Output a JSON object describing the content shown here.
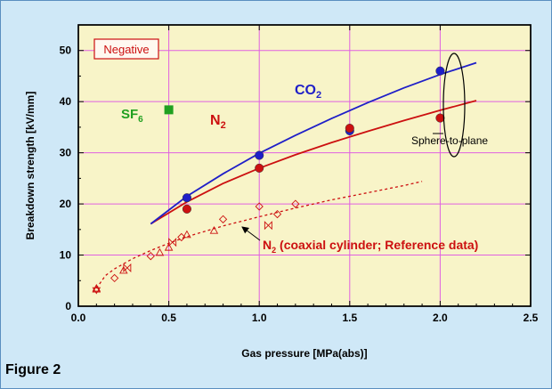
{
  "caption": "Figure 2",
  "chart_data": {
    "type": "scatter",
    "xlabel": "Gas pressure  [MPa(abs)]",
    "ylabel": "Breakdown strength  [kV/mm]",
    "xlim": [
      0,
      2.5
    ],
    "ylim": [
      0,
      55
    ],
    "xticks": [
      "0.0",
      "0.5",
      "1.0",
      "1.5",
      "2.0",
      "2.5"
    ],
    "yticks": [
      "0",
      "10",
      "20",
      "30",
      "40",
      "50"
    ],
    "grid": true,
    "tag": "Negative",
    "annotations": {
      "sphere_to_plane": "Sphere-to-plane"
    },
    "colors": {
      "co2": "#1f1fc8",
      "n2": "#cc1010",
      "sf6": "#20a020",
      "plot_bg": "#f8f4c8",
      "grid": "#e060e0"
    },
    "series": [
      {
        "key": "co2",
        "label_main": "CO",
        "label_sub": "2",
        "color": "#1f1fc8",
        "points": [
          [
            0.6,
            21.2
          ],
          [
            1.0,
            29.5
          ],
          [
            1.5,
            34.3
          ],
          [
            2.0,
            46.0
          ]
        ],
        "fit": [
          [
            0.4,
            16.1
          ],
          [
            0.6,
            21.5
          ],
          [
            0.8,
            25.9
          ],
          [
            1.0,
            29.9
          ],
          [
            1.2,
            33.4
          ],
          [
            1.4,
            36.7
          ],
          [
            1.6,
            39.8
          ],
          [
            1.8,
            42.7
          ],
          [
            2.0,
            45.3
          ],
          [
            2.2,
            47.6
          ]
        ]
      },
      {
        "key": "n2",
        "label_main": "N",
        "label_sub": "2",
        "color": "#cc1010",
        "points": [
          [
            0.6,
            19.0
          ],
          [
            1.0,
            27.0
          ],
          [
            1.5,
            34.8
          ],
          [
            2.0,
            36.8
          ]
        ],
        "fit": [
          [
            0.4,
            16.1
          ],
          [
            0.6,
            20.4
          ],
          [
            0.8,
            24.0
          ],
          [
            1.0,
            27.0
          ],
          [
            1.2,
            29.6
          ],
          [
            1.4,
            32.0
          ],
          [
            1.6,
            34.2
          ],
          [
            1.8,
            36.3
          ],
          [
            2.0,
            38.3
          ],
          [
            2.2,
            40.2
          ]
        ]
      },
      {
        "key": "sf6",
        "label_main": "SF",
        "label_sub": "6",
        "color": "#20a020",
        "points": [
          [
            0.5,
            38.4
          ]
        ]
      },
      {
        "key": "n2_coaxial",
        "label_main": "N",
        "label_sub": "2",
        "label_suffix": " (coaxial cylinder; Reference data)",
        "color": "#cc1010",
        "points": [
          [
            0.1,
            3.2
          ],
          [
            0.1,
            3.5
          ],
          [
            0.2,
            5.5
          ],
          [
            0.25,
            7.0
          ],
          [
            0.27,
            7.5
          ],
          [
            0.4,
            9.8
          ],
          [
            0.45,
            10.5
          ],
          [
            0.5,
            11.5
          ],
          [
            0.52,
            12.5
          ],
          [
            0.57,
            13.5
          ],
          [
            0.6,
            14.0
          ],
          [
            0.75,
            14.8
          ],
          [
            0.8,
            17.0
          ],
          [
            1.0,
            19.5
          ],
          [
            1.05,
            15.8
          ],
          [
            1.1,
            18.0
          ],
          [
            1.2,
            20.0
          ]
        ],
        "fit": [
          [
            0.1,
            3.5
          ],
          [
            0.15,
            6.0
          ],
          [
            0.2,
            7.3
          ],
          [
            0.3,
            9.3
          ],
          [
            0.4,
            10.9
          ],
          [
            0.5,
            12.3
          ],
          [
            0.6,
            13.6
          ],
          [
            0.8,
            15.7
          ],
          [
            1.0,
            17.5
          ],
          [
            1.2,
            19.2
          ],
          [
            1.4,
            20.8
          ],
          [
            1.6,
            22.2
          ],
          [
            1.8,
            23.6
          ],
          [
            1.9,
            24.4
          ]
        ]
      }
    ]
  }
}
